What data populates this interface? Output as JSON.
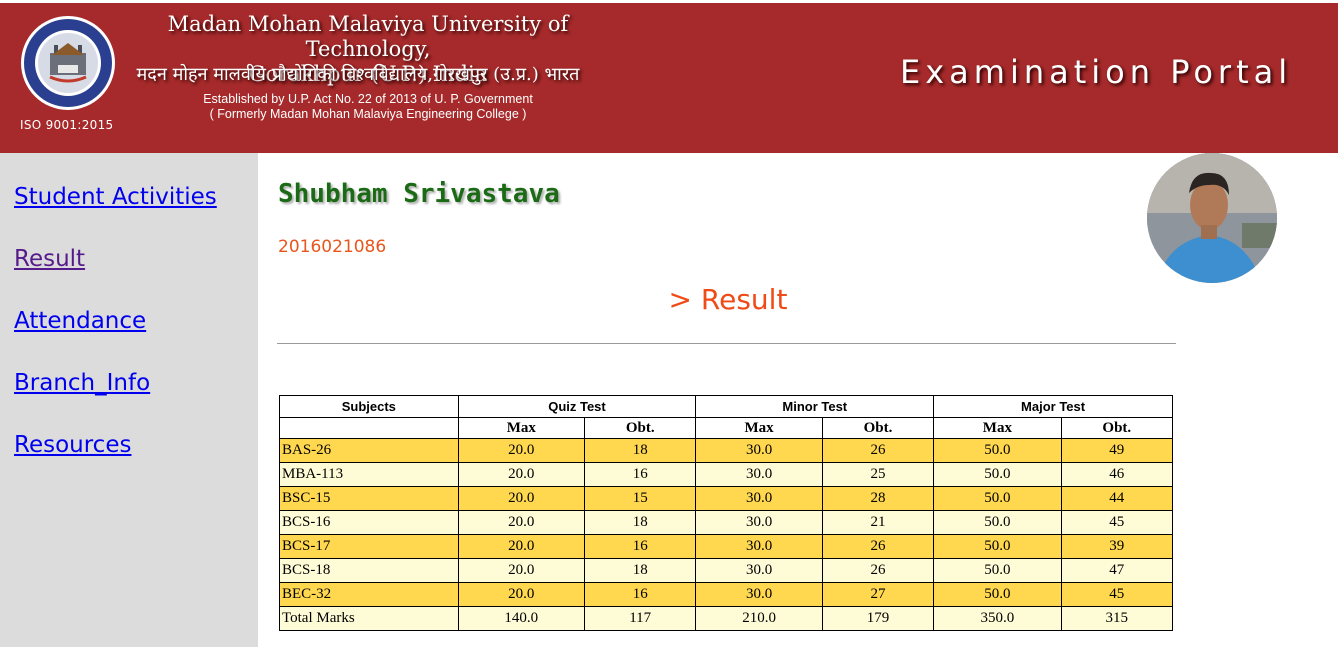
{
  "header": {
    "university_name_line1": "Madan Mohan Malaviya University of Technology,",
    "university_name_line2": "Gorakhpur  (U.P.) India",
    "university_name_hindi": "मदन मोहन मालवीय प्रौद्योगिकी विश्वविद्यालय,गोरखपुर (उ.प्र.) भारत",
    "established_line": "Established by U.P. Act No. 22 of 2013 of U. P. Government",
    "formerly_line": "( Formerly Madan Mohan Malaviya Engineering College )",
    "iso": "ISO 9001:2015",
    "portal_title": "Examination Portal",
    "colors": {
      "header_bg": "#a62a2b",
      "sidebar_bg": "#dcdcdc"
    }
  },
  "sidebar": {
    "items": [
      {
        "label": "Student Activities"
      },
      {
        "label": "Result"
      },
      {
        "label": "Attendance"
      },
      {
        "label": "Branch_Info"
      },
      {
        "label": "Resources"
      }
    ]
  },
  "student": {
    "name": "Shubham Srivastava",
    "roll_no": "2016021086"
  },
  "section_title": "> Result",
  "table": {
    "group_headers": [
      "Subjects",
      "Quiz Test",
      "Minor Test",
      "Major Test"
    ],
    "sub_headers": [
      "Max",
      "Obt.",
      "Max",
      "Obt.",
      "Max",
      "Obt."
    ],
    "rows": [
      {
        "subject": "BAS-26",
        "quiz_max": "20.0",
        "quiz_obt": "18",
        "minor_max": "30.0",
        "minor_obt": "26",
        "major_max": "50.0",
        "major_obt": "49"
      },
      {
        "subject": "MBA-113",
        "quiz_max": "20.0",
        "quiz_obt": "16",
        "minor_max": "30.0",
        "minor_obt": "25",
        "major_max": "50.0",
        "major_obt": "46"
      },
      {
        "subject": "BSC-15",
        "quiz_max": "20.0",
        "quiz_obt": "15",
        "minor_max": "30.0",
        "minor_obt": "28",
        "major_max": "50.0",
        "major_obt": "44"
      },
      {
        "subject": "BCS-16",
        "quiz_max": "20.0",
        "quiz_obt": "18",
        "minor_max": "30.0",
        "minor_obt": "21",
        "major_max": "50.0",
        "major_obt": "45"
      },
      {
        "subject": "BCS-17",
        "quiz_max": "20.0",
        "quiz_obt": "16",
        "minor_max": "30.0",
        "minor_obt": "26",
        "major_max": "50.0",
        "major_obt": "39"
      },
      {
        "subject": "BCS-18",
        "quiz_max": "20.0",
        "quiz_obt": "18",
        "minor_max": "30.0",
        "minor_obt": "26",
        "major_max": "50.0",
        "major_obt": "47"
      },
      {
        "subject": "BEC-32",
        "quiz_max": "20.0",
        "quiz_obt": "16",
        "minor_max": "30.0",
        "minor_obt": "27",
        "major_max": "50.0",
        "major_obt": "45"
      },
      {
        "subject": "Total Marks",
        "quiz_max": "140.0",
        "quiz_obt": "117",
        "minor_max": "210.0",
        "minor_obt": "179",
        "major_max": "350.0",
        "major_obt": "315"
      }
    ],
    "colors": {
      "row_odd": "#ffd84f",
      "row_even": "#fefcd6"
    }
  }
}
